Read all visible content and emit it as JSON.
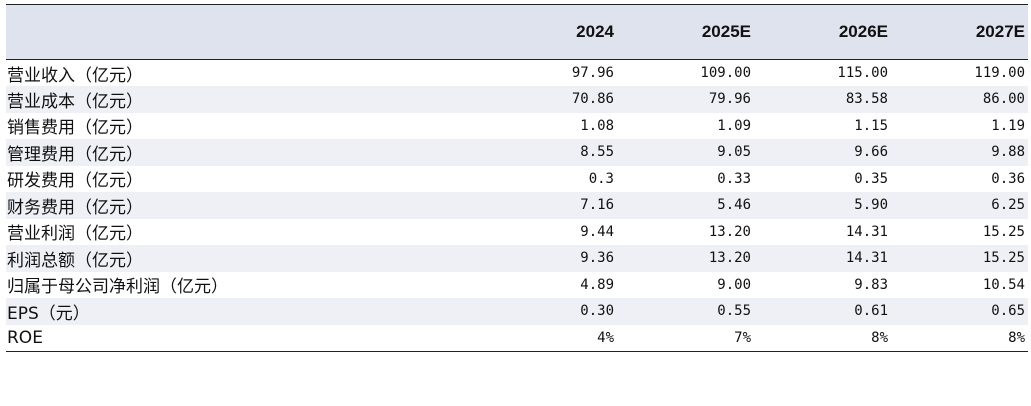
{
  "table": {
    "header": [
      "",
      "2024",
      "2025E",
      "2026E",
      "2027E"
    ],
    "rows": [
      {
        "label": "营业收入（亿元）",
        "values": [
          "97.96",
          "109.00",
          "115.00",
          "119.00"
        ]
      },
      {
        "label": "营业成本（亿元）",
        "values": [
          "70.86",
          "79.96",
          "83.58",
          "86.00"
        ]
      },
      {
        "label": "销售费用（亿元）",
        "values": [
          "1.08",
          "1.09",
          "1.15",
          "1.19"
        ]
      },
      {
        "label": "管理费用（亿元）",
        "values": [
          "8.55",
          "9.05",
          "9.66",
          "9.88"
        ]
      },
      {
        "label": "研发费用（亿元）",
        "values": [
          "0.3",
          "0.33",
          "0.35",
          "0.36"
        ]
      },
      {
        "label": "财务费用（亿元）",
        "values": [
          "7.16",
          "5.46",
          "5.90",
          "6.25"
        ]
      },
      {
        "label": "营业利润（亿元）",
        "values": [
          "9.44",
          "13.20",
          "14.31",
          "15.25"
        ]
      },
      {
        "label": "利润总额（亿元）",
        "values": [
          "9.36",
          "13.20",
          "14.31",
          "15.25"
        ]
      },
      {
        "label": "归属于母公司净利润（亿元）",
        "values": [
          "4.89",
          "9.00",
          "9.83",
          "10.54"
        ]
      },
      {
        "label": "EPS（元）",
        "values": [
          "0.30",
          "0.55",
          "0.61",
          "0.65"
        ]
      },
      {
        "label": "ROE",
        "values": [
          "4%",
          "7%",
          "8%",
          "8%"
        ]
      }
    ]
  },
  "colors": {
    "header_bg": "#dee3ee",
    "stripe_bg": "#eef0f5",
    "rule": "#222222",
    "text": "#111111"
  }
}
